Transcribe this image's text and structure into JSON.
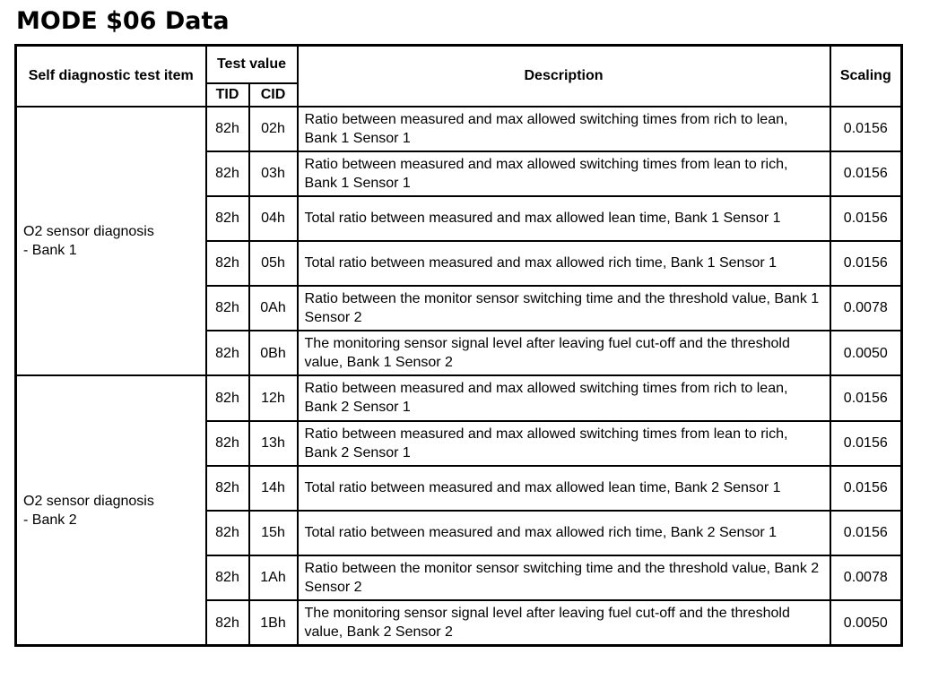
{
  "page": {
    "title": "MODE $06 Data"
  },
  "table": {
    "headers": {
      "item": "Self diagnostic test item",
      "test_value": "Test value",
      "tid": "TID",
      "cid": "CID",
      "description": "Description",
      "scaling": "Scaling"
    },
    "groups": [
      {
        "item": "O2 sensor diagnosis\n- Bank 1",
        "rows": [
          {
            "tid": "82h",
            "cid": "02h",
            "description": "Ratio between measured and max allowed switching times from rich to lean, Bank 1 Sensor 1",
            "scaling": "0.0156"
          },
          {
            "tid": "82h",
            "cid": "03h",
            "description": "Ratio between measured and max allowed switching times from lean to rich, Bank 1 Sensor 1",
            "scaling": "0.0156"
          },
          {
            "tid": "82h",
            "cid": "04h",
            "description": "Total ratio between measured and max allowed lean time, Bank 1 Sensor 1",
            "scaling": "0.0156"
          },
          {
            "tid": "82h",
            "cid": "05h",
            "description": "Total ratio between measured and max allowed rich time, Bank 1 Sensor 1",
            "scaling": "0.0156"
          },
          {
            "tid": "82h",
            "cid": "0Ah",
            "description": "Ratio between the monitor sensor switching time and the threshold value, Bank 1 Sensor 2",
            "scaling": "0.0078"
          },
          {
            "tid": "82h",
            "cid": "0Bh",
            "description": "The monitoring sensor signal level after leaving fuel cut-off and the threshold value, Bank 1 Sensor 2",
            "scaling": "0.0050"
          }
        ]
      },
      {
        "item": "O2 sensor diagnosis\n- Bank 2",
        "rows": [
          {
            "tid": "82h",
            "cid": "12h",
            "description": "Ratio between measured and max allowed switching times from rich to lean, Bank 2 Sensor 1",
            "scaling": "0.0156"
          },
          {
            "tid": "82h",
            "cid": "13h",
            "description": "Ratio between measured and max allowed switching times from lean to rich, Bank 2 Sensor 1",
            "scaling": "0.0156"
          },
          {
            "tid": "82h",
            "cid": "14h",
            "description": "Total ratio between measured and max allowed lean time, Bank 2 Sensor 1",
            "scaling": "0.0156"
          },
          {
            "tid": "82h",
            "cid": "15h",
            "description": "Total ratio between measured and max allowed rich time, Bank 2 Sensor 1",
            "scaling": "0.0156"
          },
          {
            "tid": "82h",
            "cid": "1Ah",
            "description": "Ratio between the monitor sensor switching time and the threshold value, Bank 2 Sensor 2",
            "scaling": "0.0078"
          },
          {
            "tid": "82h",
            "cid": "1Bh",
            "description": "The monitoring sensor signal level after leaving fuel cut-off and the threshold value, Bank 2 Sensor 2",
            "scaling": "0.0050"
          }
        ]
      }
    ]
  }
}
